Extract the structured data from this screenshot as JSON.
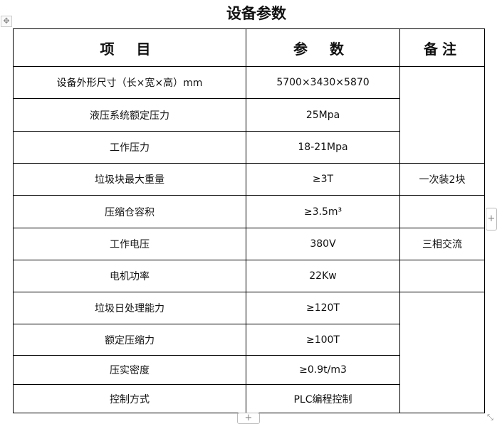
{
  "title": "设备参数",
  "headers": [
    "项 目",
    "参 数",
    "备注"
  ],
  "rows": [
    {
      "item": "设备外形尺寸（长×宽×高）mm",
      "param": "5700×3430×5870"
    },
    {
      "item": "液压系统额定压力",
      "param": "25Mpa"
    },
    {
      "item": "工作压力",
      "param": "18-21Mpa"
    },
    {
      "item": "垃圾块最大重量",
      "param": "≥3T",
      "note": "一次装2块"
    },
    {
      "item": "压缩仓容积",
      "param": "≥3.5m³",
      "note": ""
    },
    {
      "item": "工作电压",
      "param": "380V",
      "note": "三相交流"
    },
    {
      "item": "电机功率",
      "param": "22Kw",
      "note": ""
    },
    {
      "item": "垃圾日处理能力",
      "param": "≥120T"
    },
    {
      "item": "额定压缩力",
      "param": "≥100T"
    },
    {
      "item": "压实密度",
      "param": "≥0.9t/m3"
    },
    {
      "item": "控制方式",
      "param": "PLC编程控制"
    }
  ],
  "controls": {
    "move": "✥",
    "add": "+",
    "resize": "⤡"
  }
}
